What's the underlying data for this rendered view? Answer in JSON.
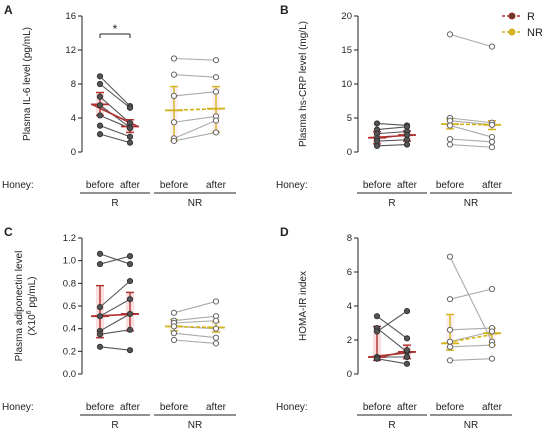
{
  "colors": {
    "R": "#b03030",
    "NR": "#d4b21a",
    "R_point_fill": "#555555",
    "NR_point_stroke": "#666666",
    "R_line": "#555555",
    "NR_line": "#aaaaaa",
    "bar_shade": "#f6d6d6",
    "axis": "#222222"
  },
  "legend": [
    {
      "key": "R",
      "label": "R"
    },
    {
      "key": "NR",
      "label": "NR"
    }
  ],
  "honey_label": "Honey:",
  "chart_data": [
    {
      "panel": "A",
      "type": "scatter",
      "ylabel": "Plasma IL-6 level (pg/mL)",
      "ylim": [
        0,
        16
      ],
      "yticks": [
        0,
        4,
        8,
        12,
        16
      ],
      "categories": [
        "before",
        "after",
        "before",
        "after"
      ],
      "groups": [
        {
          "label": "R"
        },
        {
          "label": "NR"
        }
      ],
      "series": [
        {
          "group": "R",
          "pairs": [
            [
              8.9,
              5.4
            ],
            [
              8.0,
              5.2
            ],
            [
              6.5,
              3.4
            ],
            [
              5.5,
              2.9
            ],
            [
              4.3,
              2.8
            ],
            [
              3.1,
              1.8
            ],
            [
              2.1,
              1.1
            ]
          ],
          "mean": [
            5.6,
            3.0
          ],
          "err": [
            [
              4.3,
              7.0
            ],
            [
              2.3,
              3.8
            ]
          ]
        },
        {
          "group": "NR",
          "pairs": [
            [
              11.0,
              10.8
            ],
            [
              9.1,
              8.8
            ],
            [
              6.6,
              7.1
            ],
            [
              3.5,
              4.2
            ],
            [
              1.6,
              3.7
            ],
            [
              1.3,
              2.3
            ]
          ],
          "mean": [
            4.9,
            5.1
          ],
          "err": [
            [
              1.3,
              7.7
            ],
            [
              2.3,
              7.7
            ]
          ]
        }
      ],
      "annotation": "*"
    },
    {
      "panel": "B",
      "type": "scatter",
      "ylabel": "Plasma hs-CRP level (mg/L)",
      "ylim": [
        0,
        20
      ],
      "yticks": [
        0,
        5,
        10,
        15,
        20
      ],
      "categories": [
        "before",
        "after",
        "before",
        "after"
      ],
      "groups": [
        {
          "label": "R"
        },
        {
          "label": "NR"
        }
      ],
      "series": [
        {
          "group": "R",
          "pairs": [
            [
              4.2,
              3.9
            ],
            [
              3.3,
              3.7
            ],
            [
              2.7,
              3.0
            ],
            [
              2.0,
              2.5
            ],
            [
              1.6,
              1.8
            ],
            [
              0.9,
              1.1
            ]
          ],
          "mean": [
            2.1,
            2.5
          ],
          "err": [
            [
              1.2,
              3.0
            ],
            [
              1.6,
              3.1
            ]
          ]
        },
        {
          "group": "NR",
          "pairs": [
            [
              17.3,
              15.5
            ],
            [
              5.0,
              4.3
            ],
            [
              4.6,
              4.0
            ],
            [
              3.9,
              2.2
            ],
            [
              1.9,
              1.5
            ],
            [
              1.1,
              0.7
            ]
          ],
          "mean": [
            4.1,
            4.0
          ],
          "err": [
            [
              3.4,
              4.9
            ],
            [
              3.3,
              4.6
            ]
          ]
        }
      ]
    },
    {
      "panel": "C",
      "type": "scatter",
      "ylabel": "Plasma adiponectin level",
      "ylabel2_base": "(X10",
      "ylabel2_sup": "6",
      "ylabel2_rest": " pg/mL)",
      "ylim": [
        0,
        1.2
      ],
      "yticks": [
        0.0,
        0.2,
        0.4,
        0.6,
        0.8,
        1.0,
        1.2
      ],
      "categories": [
        "before",
        "after",
        "before",
        "after"
      ],
      "groups": [
        {
          "label": "R"
        },
        {
          "label": "NR"
        }
      ],
      "series": [
        {
          "group": "R",
          "pairs": [
            [
              1.06,
              0.97
            ],
            [
              0.97,
              1.04
            ],
            [
              0.59,
              0.82
            ],
            [
              0.51,
              0.66
            ],
            [
              0.38,
              0.53
            ],
            [
              0.35,
              0.39
            ],
            [
              0.24,
              0.21
            ]
          ],
          "mean": [
            0.51,
            0.53
          ],
          "err": [
            [
              0.32,
              0.78
            ],
            [
              0.38,
              0.72
            ]
          ]
        },
        {
          "group": "NR",
          "pairs": [
            [
              0.54,
              0.64
            ],
            [
              0.47,
              0.51
            ],
            [
              0.45,
              0.47
            ],
            [
              0.42,
              0.4
            ],
            [
              0.36,
              0.32
            ],
            [
              0.3,
              0.27
            ]
          ],
          "mean": [
            0.42,
            0.41
          ],
          "err": [
            [
              0.38,
              0.48
            ],
            [
              0.37,
              0.46
            ]
          ]
        }
      ]
    },
    {
      "panel": "D",
      "type": "scatter",
      "ylabel": "HOMA-IR index",
      "ylim": [
        0,
        8
      ],
      "yticks": [
        0,
        2,
        4,
        6,
        8
      ],
      "categories": [
        "before",
        "after",
        "before",
        "after"
      ],
      "groups": [
        {
          "label": "R"
        },
        {
          "label": "NR"
        }
      ],
      "series": [
        {
          "group": "R",
          "pairs": [
            [
              3.4,
              2.1
            ],
            [
              2.7,
              1.3
            ],
            [
              2.5,
              3.7
            ],
            [
              1.0,
              1.0
            ],
            [
              0.9,
              1.4
            ],
            [
              0.9,
              0.6
            ]
          ],
          "mean": [
            1.0,
            1.3
          ],
          "err": [
            [
              0.8,
              2.8
            ],
            [
              0.9,
              1.7
            ]
          ]
        },
        {
          "group": "NR",
          "pairs": [
            [
              6.9,
              1.9
            ],
            [
              4.4,
              5.0
            ],
            [
              2.6,
              2.7
            ],
            [
              1.9,
              2.5
            ],
            [
              1.6,
              1.7
            ],
            [
              0.8,
              0.9
            ]
          ],
          "mean": [
            1.8,
            2.4
          ],
          "err": [
            [
              1.4,
              3.5
            ],
            [
              1.7,
              2.7
            ]
          ]
        }
      ]
    }
  ]
}
